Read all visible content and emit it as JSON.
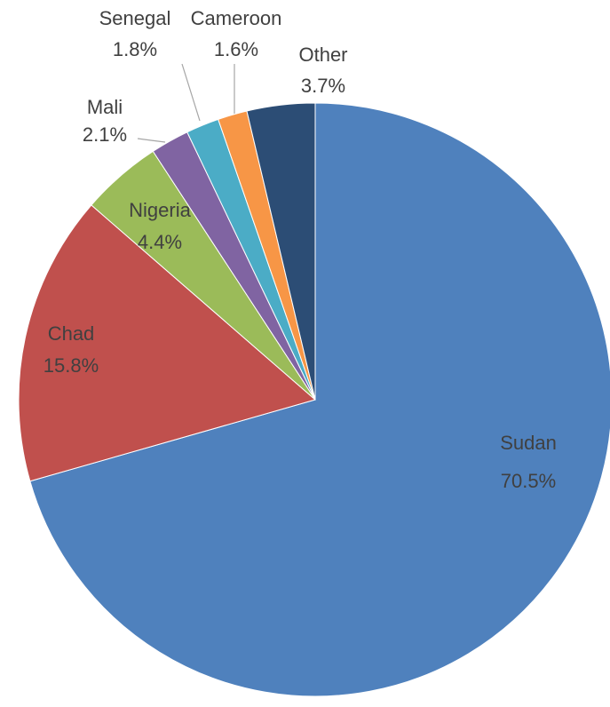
{
  "chart_data": {
    "type": "pie",
    "categories": [
      "Sudan",
      "Chad",
      "Nigeria",
      "Mali",
      "Senegal",
      "Cameroon",
      "Other"
    ],
    "values": [
      70.5,
      15.8,
      4.4,
      2.1,
      1.8,
      1.6,
      3.7
    ],
    "value_labels": [
      "70.5%",
      "15.8%",
      "4.4%",
      "2.1%",
      "1.8%",
      "1.6%",
      "3.7%"
    ],
    "colors": [
      "#4f81bd",
      "#c0504d",
      "#9bbb59",
      "#8064a2",
      "#4bacc6",
      "#f79646",
      "#2c4d75"
    ]
  }
}
